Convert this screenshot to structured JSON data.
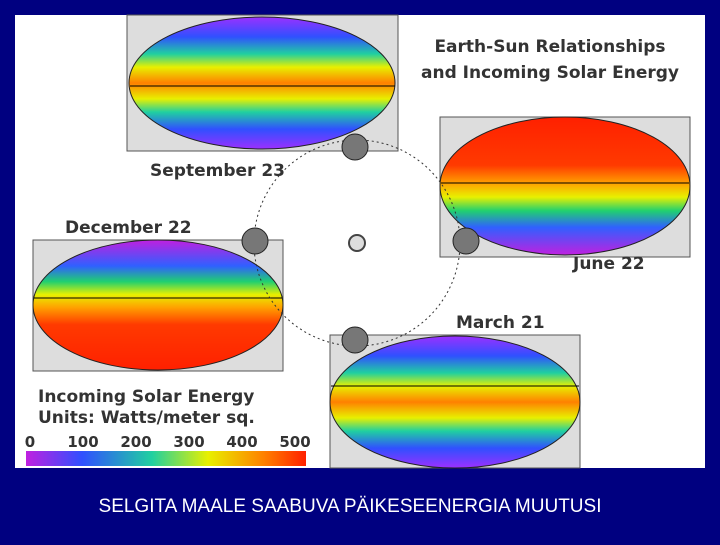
{
  "diagram": {
    "title_lines": [
      "Earth-Sun Relationships",
      "and Incoming Solar Energy"
    ],
    "seasons": [
      "September 23",
      "December 22",
      "June 22",
      "March 21"
    ],
    "legend_lines": [
      "Incoming Solar Energy",
      "Units: Watts/meter sq."
    ],
    "scale_ticks": [
      0,
      100,
      200,
      300,
      400,
      500
    ]
  },
  "caption": "SELGITA MAALE SAABUVA PÄIKESEENERGIA MUUTUSI"
}
